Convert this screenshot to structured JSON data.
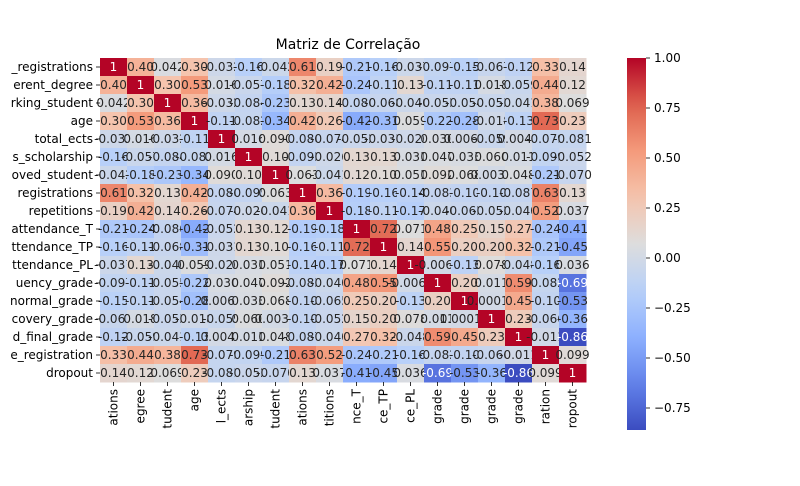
{
  "chart_data": {
    "type": "heatmap",
    "title": "Matriz de Correlação",
    "y_tick_labels": [
      "_registrations",
      "erent_degree",
      "rking_student",
      "age",
      "total_ects",
      "s_scholarship",
      "oved_student",
      "registrations",
      "repetitions",
      "attendance_T",
      "ttendance_TP",
      "ttendance_PL",
      "uency_grade",
      "normal_grade",
      "covery_grade",
      "d_final_grade",
      "e_registration",
      "dropout"
    ],
    "x_tick_labels": [
      "ations",
      "egree",
      "tudent",
      "age",
      "l_ects",
      "arship",
      "tudent",
      "ations",
      "titions",
      "nce_T",
      "ce_TP",
      "ce_PL",
      "grade",
      "grade",
      "grade",
      "grade",
      "ration",
      "ropout"
    ],
    "matrix": [
      [
        1,
        0.4,
        0.042,
        0.3,
        -0.032,
        -0.16,
        -0.042,
        0.61,
        0.19,
        -0.21,
        -0.16,
        -0.037,
        -0.097,
        -0.15,
        -0.067,
        -0.12,
        0.33,
        0.14
      ],
      [
        0.4,
        1,
        0.3,
        0.53,
        0.016,
        -0.057,
        -0.18,
        0.32,
        0.42,
        -0.24,
        -0.11,
        0.13,
        -0.11,
        -0.11,
        0.018,
        -0.059,
        0.44,
        0.12
      ],
      [
        0.042,
        0.3,
        1,
        0.36,
        -0.032,
        -0.084,
        -0.23,
        0.13,
        0.14,
        -0.086,
        -0.068,
        -0.04,
        -0.055,
        -0.054,
        -0.053,
        -0.041,
        0.38,
        0.069
      ],
      [
        0.3,
        0.53,
        0.36,
        1,
        -0.11,
        -0.082,
        -0.34,
        0.42,
        0.26,
        -0.42,
        -0.31,
        0.059,
        -0.22,
        -0.28,
        -0.018,
        -0.13,
        0.73,
        0.23
      ],
      [
        -0.032,
        0.016,
        -0.032,
        -0.11,
        1,
        0.016,
        0.09,
        -0.086,
        -0.074,
        -0.052,
        -0.031,
        -0.026,
        0.03,
        0.0067,
        -0.059,
        0.0047,
        -0.079,
        -0.081
      ],
      [
        -0.16,
        -0.057,
        -0.084,
        -0.082,
        0.016,
        1,
        0.1,
        -0.095,
        -0.026,
        0.13,
        0.13,
        0.031,
        0.047,
        0.033,
        0.06,
        0.011,
        -0.099,
        -0.052
      ],
      [
        -0.042,
        -0.18,
        -0.23,
        -0.34,
        0.09,
        0.1,
        1,
        0.063,
        -0.041,
        0.12,
        0.1,
        0.051,
        0.092,
        0.068,
        0.0036,
        0.048,
        -0.21,
        -0.07
      ],
      [
        0.61,
        0.32,
        0.13,
        0.42,
        -0.086,
        -0.095,
        0.063,
        1,
        0.36,
        -0.19,
        -0.16,
        -0.14,
        -0.083,
        -0.1,
        -0.1,
        -0.087,
        0.63,
        0.13
      ],
      [
        0.19,
        0.42,
        0.14,
        0.26,
        -0.074,
        -0.026,
        -0.041,
        0.36,
        1,
        -0.18,
        -0.11,
        -0.17,
        -0.04,
        -0.065,
        -0.052,
        -0.04,
        0.52,
        0.037
      ],
      [
        -0.21,
        -0.24,
        -0.086,
        -0.42,
        -0.052,
        0.13,
        0.12,
        -0.19,
        -0.18,
        1,
        0.72,
        0.071,
        0.48,
        0.25,
        0.15,
        0.27,
        -0.24,
        -0.41
      ],
      [
        -0.16,
        -0.11,
        -0.068,
        -0.31,
        -0.031,
        0.13,
        0.1,
        -0.16,
        -0.11,
        0.72,
        1,
        0.14,
        0.55,
        0.2,
        0.2,
        0.32,
        -0.21,
        -0.45
      ],
      [
        -0.037,
        0.13,
        -0.04,
        0.059,
        -0.026,
        0.031,
        0.051,
        -0.14,
        -0.17,
        0.071,
        0.14,
        1,
        -0.0065,
        -0.13,
        0.078,
        -0.048,
        -0.16,
        0.036
      ],
      [
        -0.097,
        -0.11,
        -0.055,
        -0.22,
        0.03,
        0.047,
        0.092,
        -0.083,
        -0.04,
        0.48,
        0.55,
        -0.0065,
        1,
        0.2,
        0.011,
        0.59,
        -0.082,
        -0.69
      ],
      [
        -0.15,
        -0.11,
        -0.054,
        -0.28,
        0.0067,
        0.033,
        0.068,
        -0.1,
        -0.065,
        0.25,
        0.2,
        -0.13,
        0.2,
        1,
        0.0001,
        0.45,
        -0.1,
        -0.53
      ],
      [
        -0.067,
        0.018,
        -0.053,
        -0.018,
        -0.059,
        0.06,
        0.0036,
        -0.1,
        -0.052,
        0.15,
        0.2,
        0.078,
        0.011,
        0.0001,
        1,
        0.23,
        -0.066,
        -0.36
      ],
      [
        -0.12,
        -0.059,
        -0.041,
        -0.13,
        0.0047,
        0.011,
        0.048,
        -0.087,
        -0.04,
        0.27,
        0.32,
        -0.048,
        0.59,
        0.45,
        0.23,
        1,
        -0.011,
        -0.86
      ],
      [
        0.33,
        0.44,
        0.38,
        0.73,
        -0.079,
        -0.099,
        -0.21,
        0.63,
        0.52,
        -0.24,
        -0.21,
        -0.16,
        -0.082,
        -0.1,
        -0.066,
        -0.011,
        1,
        0.099
      ],
      [
        0.14,
        0.12,
        0.069,
        0.23,
        -0.081,
        -0.052,
        -0.07,
        0.13,
        0.037,
        -0.41,
        -0.45,
        0.036,
        -0.69,
        -0.53,
        -0.36,
        -0.86,
        0.099,
        1
      ]
    ],
    "colormap": "coolwarm",
    "vmin": -0.86,
    "vmax": 1,
    "colorbar_ticks": [
      1.0,
      0.75,
      0.5,
      0.25,
      0.0,
      -0.25,
      -0.5,
      -0.75
    ],
    "colorbar_tick_labels": [
      "1.00",
      "0.75",
      "0.50",
      "0.25",
      "0.00",
      "−0.25",
      "−0.50",
      "−0.75"
    ]
  }
}
